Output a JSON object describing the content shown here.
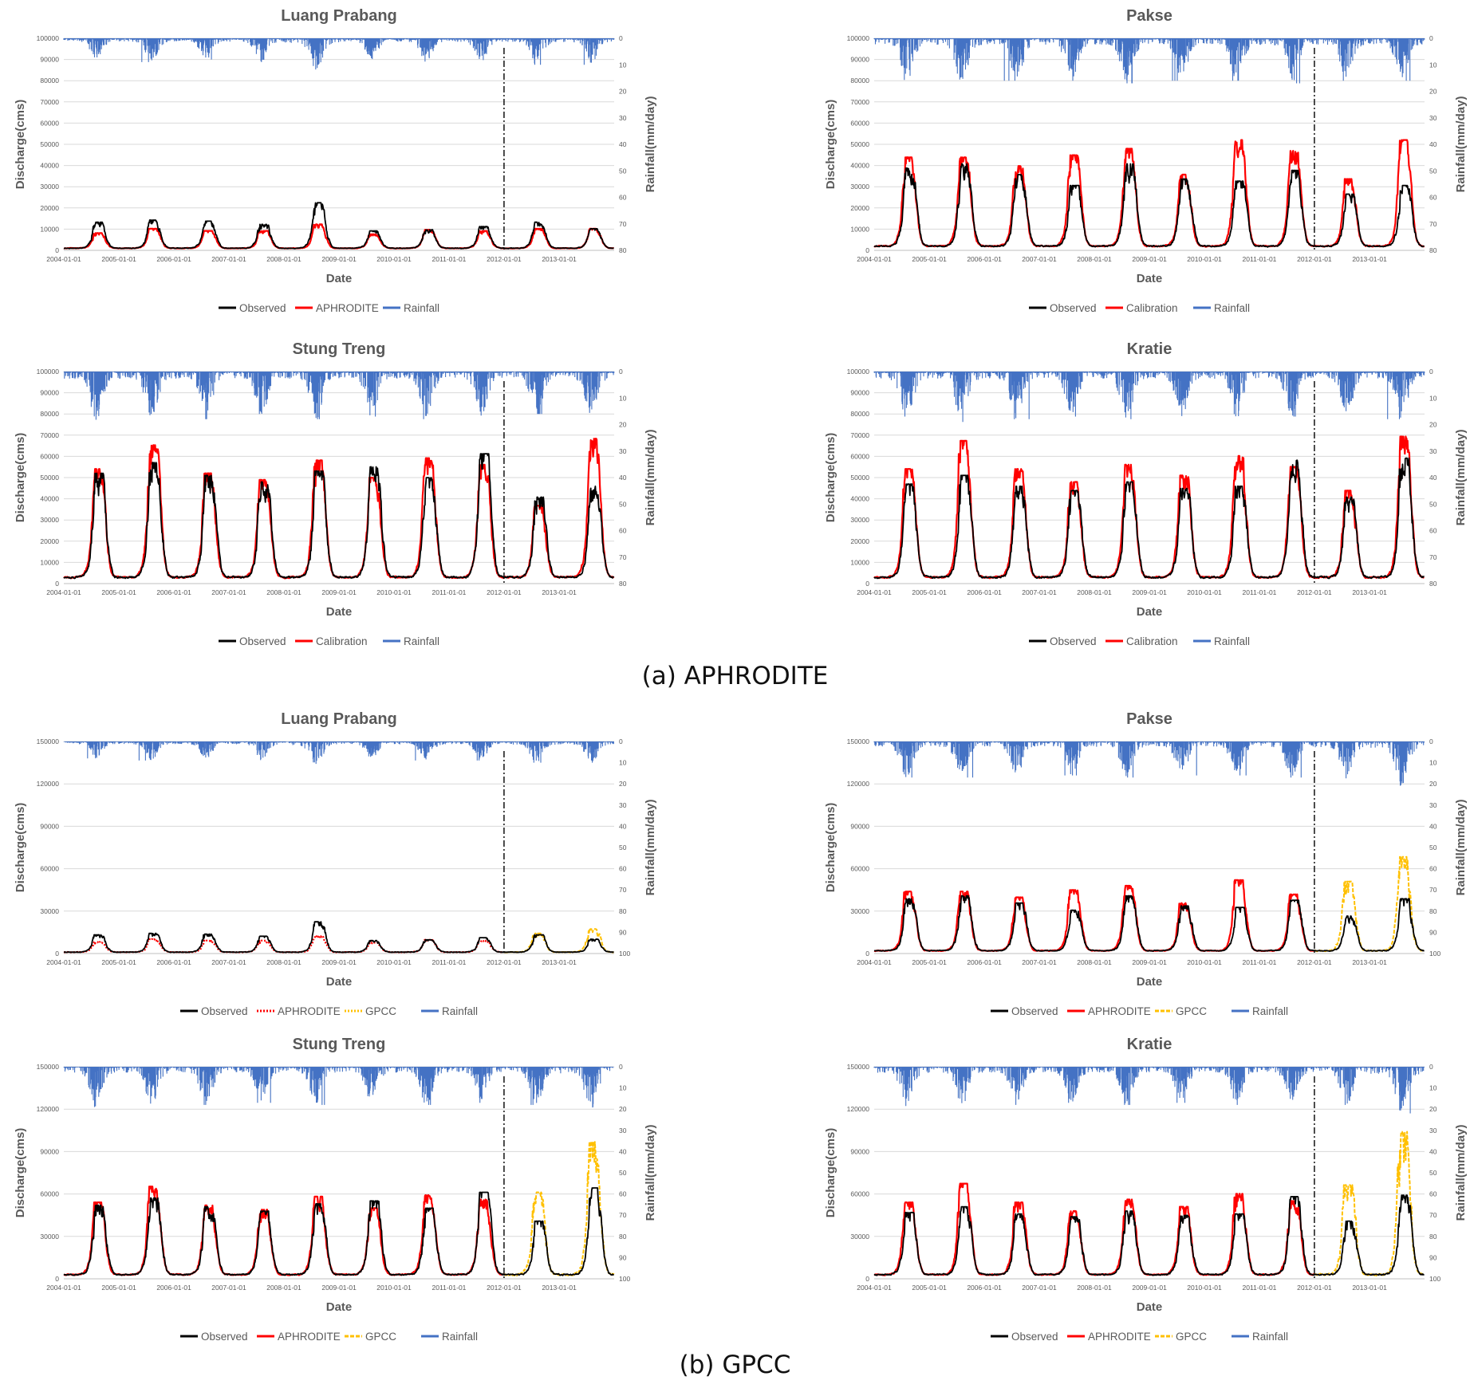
{
  "captions": {
    "a": "(a) APHRODITE",
    "b": "(b) GPCC"
  },
  "colors": {
    "observed": "#000000",
    "simulated": "#ff0000",
    "gpcc": "#ffc000",
    "rainfall": "#4472c4",
    "grid": "#d9d9d9",
    "text": "#595959"
  },
  "chart_data": [
    {
      "panel": "a",
      "title": "Luang Prabang",
      "type": "line",
      "xlabel": "Date",
      "ylabel": "Discharge(cms)",
      "y2label": "Rainfall(mm/day)",
      "x_ticks": [
        "2004-01-01",
        "2005-01-01",
        "2006-01-01",
        "2007-01-01",
        "2008-01-01",
        "2009-01-01",
        "2010-01-01",
        "2011-01-01",
        "2012-01-01",
        "2013-01-01"
      ],
      "y_ticks": [
        0,
        10000,
        20000,
        30000,
        40000,
        50000,
        60000,
        70000,
        80000,
        90000,
        100000
      ],
      "y2_ticks": [
        0,
        10,
        20,
        30,
        40,
        50,
        60,
        70,
        80
      ],
      "ylim": [
        0,
        100000
      ],
      "y2lim": [
        0,
        80
      ],
      "y2_inverted": true,
      "split_date": "2012-01-01",
      "legend": [
        "Observed",
        "APHRODITE",
        "Rainfall"
      ],
      "peaks": {
        "obs": [
          13000,
          14000,
          13500,
          12000,
          22000,
          9000,
          9500,
          11000,
          13000,
          10000
        ],
        "sim": [
          8000,
          10000,
          9000,
          9000,
          12000,
          7500,
          9500,
          9000,
          10000,
          10000
        ],
        "rain": [
          8,
          9,
          8,
          9,
          12,
          8,
          9,
          9,
          10,
          10
        ],
        "base": [
          1000,
          1000
        ]
      },
      "wet_frac": 0.45,
      "lag_days": 0
    },
    {
      "panel": "a",
      "title": "Pakse",
      "type": "line",
      "xlabel": "Date",
      "ylabel": "Discharge(cms)",
      "y2label": "Rainfall(mm/day)",
      "x_ticks": [
        "2004-01-01",
        "2005-01-01",
        "2006-01-01",
        "2007-01-01",
        "2008-01-01",
        "2009-01-01",
        "2010-01-01",
        "2011-01-01",
        "2012-01-01",
        "2013-01-01"
      ],
      "y_ticks": [
        0,
        10000,
        20000,
        30000,
        40000,
        50000,
        60000,
        70000,
        80000,
        90000,
        100000
      ],
      "y2_ticks": [
        0,
        10,
        20,
        30,
        40,
        50,
        60,
        70,
        80
      ],
      "ylim": [
        0,
        100000
      ],
      "y2lim": [
        0,
        80
      ],
      "y2_inverted": true,
      "split_date": "2012-01-01",
      "legend": [
        "Observed",
        "Calibration",
        "Rainfall"
      ],
      "peaks": {
        "obs": [
          38000,
          40000,
          35000,
          30000,
          40000,
          33000,
          32000,
          37000,
          26000,
          30000
        ],
        "sim": [
          43000,
          43000,
          39000,
          44000,
          47000,
          35000,
          51000,
          46000,
          33000,
          51000
        ],
        "rain": [
          17,
          17,
          16,
          16,
          17,
          16,
          16,
          17,
          16,
          16
        ],
        "base": [
          2000,
          2000
        ]
      },
      "wet_frac": 0.55,
      "lag_days": 5
    },
    {
      "panel": "a",
      "title": "Stung Treng",
      "type": "line",
      "xlabel": "Date",
      "ylabel": "Discharge(cms)",
      "y2label": "Rainfall(mm/day)",
      "x_ticks": [
        "2004-01-01",
        "2005-01-01",
        "2006-01-01",
        "2007-01-01",
        "2008-01-01",
        "2009-01-01",
        "2010-01-01",
        "2011-01-01",
        "2012-01-01",
        "2013-01-01"
      ],
      "y_ticks": [
        0,
        10000,
        20000,
        30000,
        40000,
        50000,
        60000,
        70000,
        80000,
        90000,
        100000
      ],
      "y2_ticks": [
        0,
        10,
        20,
        30,
        40,
        50,
        60,
        70,
        80
      ],
      "ylim": [
        0,
        100000
      ],
      "y2lim": [
        0,
        80
      ],
      "y2_inverted": true,
      "split_date": "2012-01-01",
      "legend": [
        "Observed",
        "Calibration",
        "Rainfall"
      ],
      "peaks": {
        "obs": [
          51000,
          56000,
          50000,
          47000,
          52000,
          54000,
          49000,
          60000,
          40000,
          45000
        ],
        "sim": [
          53000,
          64000,
          51000,
          48000,
          57000,
          49000,
          58000,
          55000,
          36000,
          67000
        ],
        "rain": [
          19,
          19,
          18,
          17,
          18,
          17,
          18,
          17,
          16,
          18
        ],
        "base": [
          3000,
          3000
        ]
      },
      "wet_frac": 0.55,
      "lag_days": 4
    },
    {
      "panel": "a",
      "title": "Kratie",
      "type": "line",
      "xlabel": "Date",
      "ylabel": "Discharge(cms)",
      "y2label": "Rainfall(mm/day)",
      "x_ticks": [
        "2004-01-01",
        "2005-01-01",
        "2006-01-01",
        "2007-01-01",
        "2008-01-01",
        "2009-01-01",
        "2010-01-01",
        "2011-01-01",
        "2012-01-01",
        "2013-01-01"
      ],
      "y_ticks": [
        0,
        10000,
        20000,
        30000,
        40000,
        50000,
        60000,
        70000,
        80000,
        90000,
        100000
      ],
      "y2_ticks": [
        0,
        10,
        20,
        30,
        40,
        50,
        60,
        70,
        80
      ],
      "ylim": [
        0,
        100000
      ],
      "y2lim": [
        0,
        80
      ],
      "y2_inverted": true,
      "split_date": "2012-01-01",
      "legend": [
        "Observed",
        "Calibration",
        "Rainfall"
      ],
      "peaks": {
        "obs": [
          46000,
          50000,
          45000,
          43000,
          47000,
          44000,
          45000,
          57000,
          40000,
          58000
        ],
        "sim": [
          53000,
          66000,
          53000,
          47000,
          55000,
          50000,
          59000,
          54000,
          43000,
          68000
        ],
        "rain": [
          19,
          19,
          18,
          17,
          18,
          17,
          18,
          17,
          16,
          18
        ],
        "base": [
          3000,
          3000
        ]
      },
      "wet_frac": 0.55,
      "lag_days": 4
    },
    {
      "panel": "b",
      "title": "Luang Prabang",
      "type": "line",
      "xlabel": "Date",
      "ylabel": "Discharge(cms)",
      "y2label": "Rainfall(mm/day)",
      "x_ticks": [
        "2004-01-01",
        "2005-01-01",
        "2006-01-01",
        "2007-01-01",
        "2008-01-01",
        "2009-01-01",
        "2010-01-01",
        "2011-01-01",
        "2012-01-01",
        "2013-01-01"
      ],
      "y_ticks": [
        0,
        30000,
        60000,
        90000,
        120000,
        150000
      ],
      "y2_ticks": [
        0,
        10,
        20,
        30,
        40,
        50,
        60,
        70,
        80,
        90,
        100
      ],
      "ylim": [
        0,
        150000
      ],
      "y2lim": [
        0,
        100
      ],
      "y2_inverted": true,
      "split_date": "2012-01-01",
      "legend": [
        "Observed",
        "APHRODITE",
        "GPCC",
        "Rainfall"
      ],
      "sim_dotted": true,
      "peaks": {
        "obs": [
          13000,
          14000,
          13500,
          12000,
          22000,
          9000,
          9500,
          11000,
          13000,
          10000
        ],
        "sim": [
          8000,
          10000,
          9000,
          9000,
          12000,
          7500,
          9500,
          9000,
          null,
          null
        ],
        "gpcc": [
          null,
          null,
          null,
          null,
          null,
          null,
          null,
          null,
          14000,
          17000
        ],
        "rain": [
          8,
          9,
          8,
          9,
          12,
          8,
          9,
          9,
          10,
          10
        ],
        "base": [
          1000,
          1000
        ]
      },
      "wet_frac": 0.45,
      "lag_days": 0
    },
    {
      "panel": "b",
      "title": "Pakse",
      "type": "line",
      "xlabel": "Date",
      "ylabel": "Discharge(cms)",
      "y2label": "Rainfall(mm/day)",
      "x_ticks": [
        "2004-01-01",
        "2005-01-01",
        "2006-01-01",
        "2007-01-01",
        "2008-01-01",
        "2009-01-01",
        "2010-01-01",
        "2011-01-01",
        "2012-01-01",
        "2013-01-01"
      ],
      "y_ticks": [
        0,
        30000,
        60000,
        90000,
        120000,
        150000
      ],
      "y2_ticks": [
        0,
        10,
        20,
        30,
        40,
        50,
        60,
        70,
        80,
        90,
        100
      ],
      "ylim": [
        0,
        150000
      ],
      "y2lim": [
        0,
        100
      ],
      "y2_inverted": true,
      "split_date": "2012-01-01",
      "legend": [
        "Observed",
        "APHRODITE",
        "GPCC",
        "Rainfall"
      ],
      "peaks": {
        "obs": [
          38000,
          40000,
          35000,
          30000,
          40000,
          33000,
          32000,
          37000,
          26000,
          38000
        ],
        "sim": [
          43000,
          43000,
          39000,
          44000,
          47000,
          35000,
          51000,
          41000,
          null,
          null
        ],
        "gpcc": [
          null,
          null,
          null,
          null,
          null,
          null,
          null,
          null,
          50000,
          67000
        ],
        "rain": [
          17,
          17,
          16,
          16,
          17,
          16,
          16,
          17,
          18,
          22
        ],
        "base": [
          2000,
          2000
        ]
      },
      "wet_frac": 0.55,
      "lag_days": 5
    },
    {
      "panel": "b",
      "title": "Stung Treng",
      "type": "line",
      "xlabel": "Date",
      "ylabel": "Discharge(cms)",
      "y2label": "Rainfall(mm/day)",
      "x_ticks": [
        "2004-01-01",
        "2005-01-01",
        "2006-01-01",
        "2007-01-01",
        "2008-01-01",
        "2009-01-01",
        "2010-01-01",
        "2011-01-01",
        "2012-01-01",
        "2013-01-01"
      ],
      "y_ticks": [
        0,
        30000,
        60000,
        90000,
        120000,
        150000
      ],
      "y2_ticks": [
        0,
        10,
        20,
        30,
        40,
        50,
        60,
        70,
        80,
        90,
        100
      ],
      "ylim": [
        0,
        150000
      ],
      "y2lim": [
        0,
        100
      ],
      "y2_inverted": true,
      "split_date": "2012-01-01",
      "legend": [
        "Observed",
        "APHRODITE",
        "GPCC",
        "Rainfall"
      ],
      "peaks": {
        "obs": [
          51000,
          56000,
          50000,
          47000,
          52000,
          54000,
          49000,
          60000,
          40000,
          63000
        ],
        "sim": [
          53000,
          64000,
          51000,
          48000,
          57000,
          49000,
          58000,
          55000,
          null,
          null
        ],
        "gpcc": [
          null,
          null,
          null,
          null,
          null,
          null,
          null,
          null,
          60000,
          95000
        ],
        "rain": [
          19,
          19,
          18,
          17,
          18,
          17,
          18,
          17,
          18,
          22
        ],
        "base": [
          3000,
          3000
        ]
      },
      "wet_frac": 0.55,
      "lag_days": 4
    },
    {
      "panel": "b",
      "title": "Kratie",
      "type": "line",
      "xlabel": "Date",
      "ylabel": "Discharge(cms)",
      "y2label": "Rainfall(mm/day)",
      "x_ticks": [
        "2004-01-01",
        "2005-01-01",
        "2006-01-01",
        "2007-01-01",
        "2008-01-01",
        "2009-01-01",
        "2010-01-01",
        "2011-01-01",
        "2012-01-01",
        "2013-01-01"
      ],
      "y_ticks": [
        0,
        30000,
        60000,
        90000,
        120000,
        150000
      ],
      "y2_ticks": [
        0,
        10,
        20,
        30,
        40,
        50,
        60,
        70,
        80,
        90,
        100
      ],
      "ylim": [
        0,
        150000
      ],
      "y2lim": [
        0,
        100
      ],
      "y2_inverted": true,
      "split_date": "2012-01-01",
      "legend": [
        "Observed",
        "APHRODITE",
        "GPCC",
        "Rainfall"
      ],
      "peaks": {
        "obs": [
          46000,
          50000,
          45000,
          43000,
          47000,
          44000,
          45000,
          57000,
          40000,
          58000
        ],
        "sim": [
          53000,
          66000,
          53000,
          47000,
          55000,
          50000,
          59000,
          54000,
          null,
          null
        ],
        "gpcc": [
          null,
          null,
          null,
          null,
          null,
          null,
          null,
          null,
          65000,
          102000
        ],
        "rain": [
          19,
          19,
          18,
          17,
          18,
          17,
          18,
          17,
          18,
          22
        ],
        "base": [
          3000,
          3000
        ]
      },
      "wet_frac": 0.55,
      "lag_days": 4
    }
  ]
}
